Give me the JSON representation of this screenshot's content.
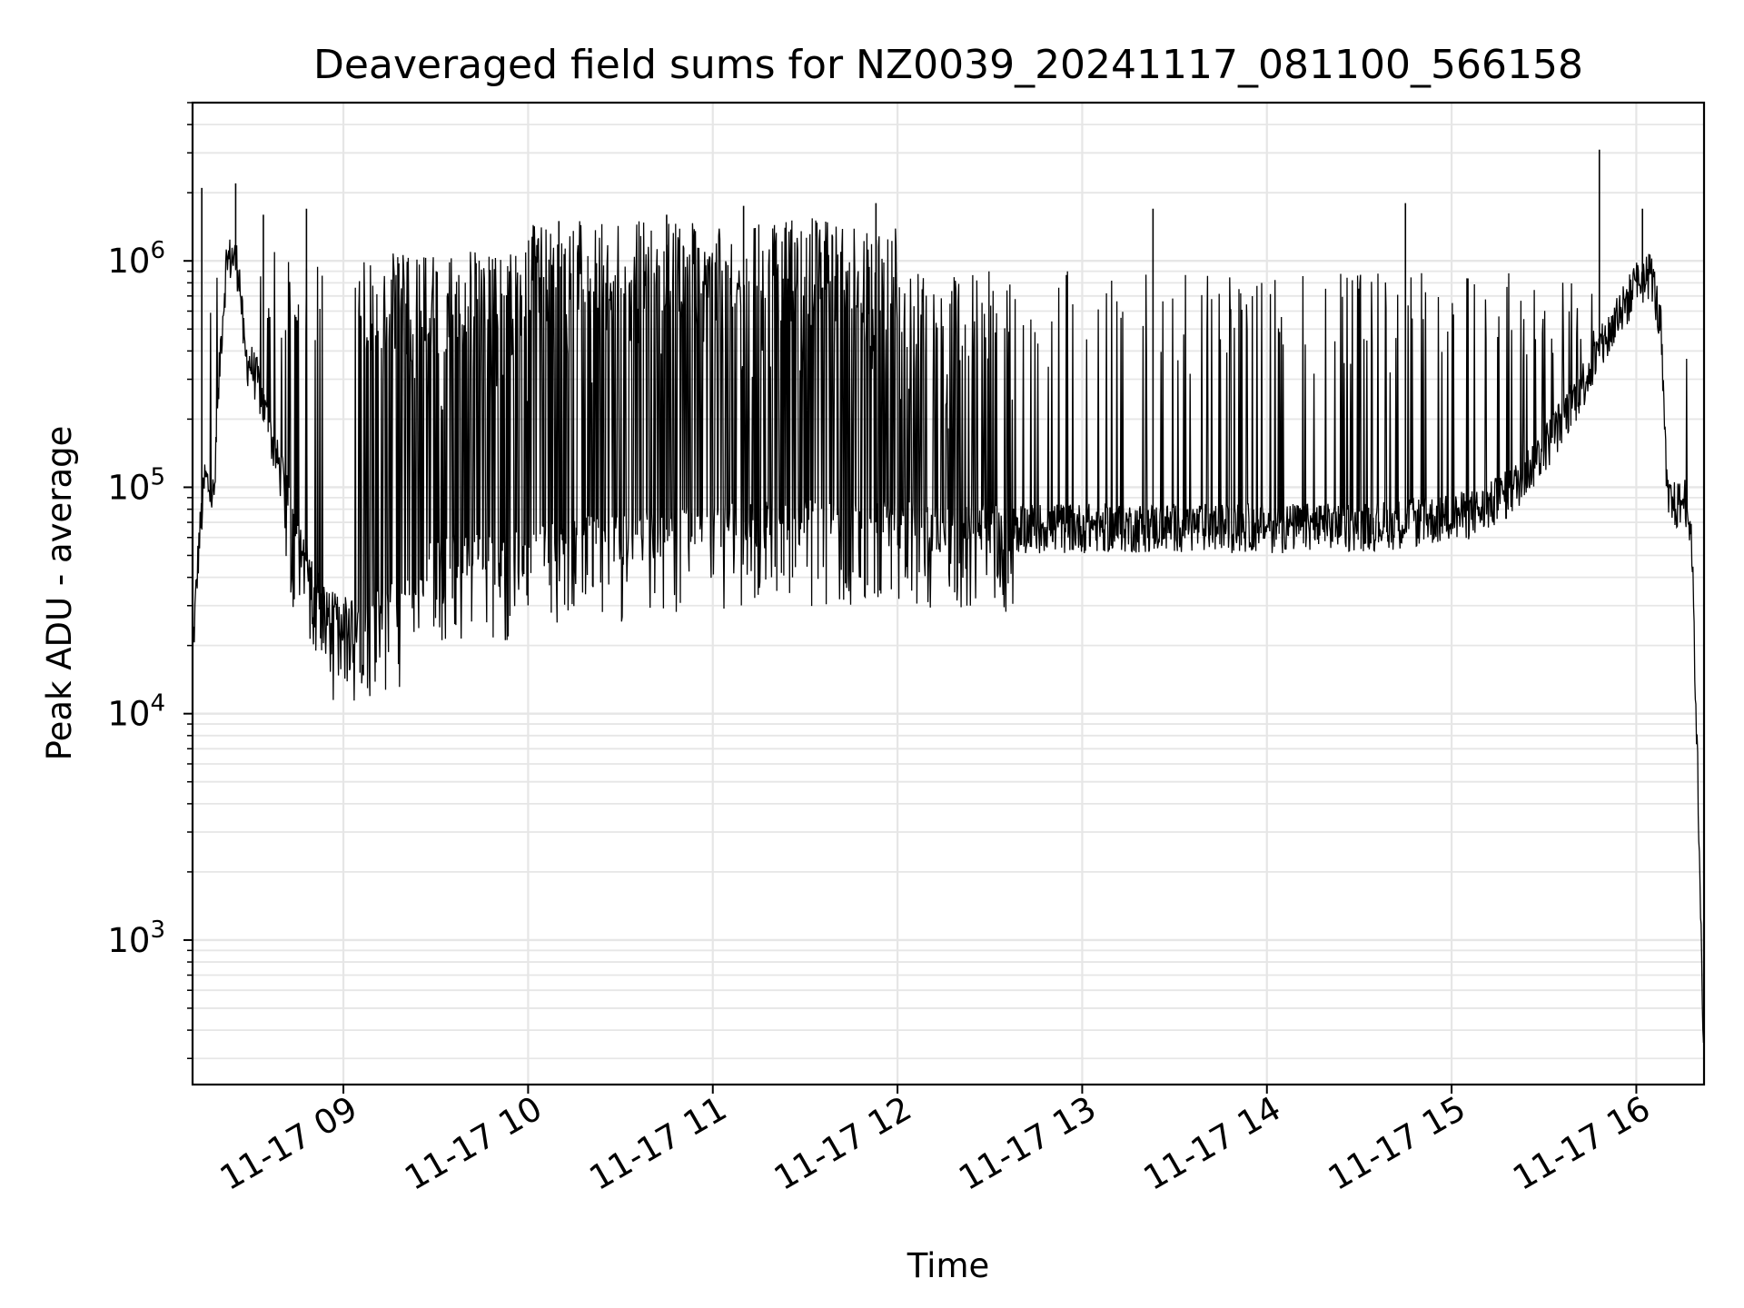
{
  "chart_data": {
    "type": "line",
    "title": "Deaveraged field sums for NZ0039_20241117_081100_566158",
    "xlabel": "Time",
    "ylabel": "Peak ADU - average",
    "yscale": "log",
    "ylim": [
      230,
      5000000
    ],
    "xlim": [
      "2024-11-17 08:11",
      "2024-11-17 16:22"
    ],
    "grid": true,
    "line_color": "#000000",
    "x_ticks": [
      "11-17 09",
      "11-17 10",
      "11-17 11",
      "11-17 12",
      "11-17 13",
      "11-17 14",
      "11-17 15",
      "11-17 16"
    ],
    "y_ticks": [
      {
        "base": "10",
        "exp": "3",
        "value": 1000
      },
      {
        "base": "10",
        "exp": "4",
        "value": 10000
      },
      {
        "base": "10",
        "exp": "5",
        "value": 100000
      },
      {
        "base": "10",
        "exp": "6",
        "value": 1000000
      }
    ],
    "series": [
      {
        "x": [
          "2024-11-17 08:11",
          "2024-11-17 08:13",
          "2024-11-17 08:15",
          "2024-11-17 08:18",
          "2024-11-17 08:20",
          "2024-11-17 08:22",
          "2024-11-17 08:24",
          "2024-11-17 08:26",
          "2024-11-17 08:28",
          "2024-11-17 08:30",
          "2024-11-17 08:32",
          "2024-11-17 08:34",
          "2024-11-17 08:36",
          "2024-11-17 08:38",
          "2024-11-17 08:41",
          "2024-11-17 08:45",
          "2024-11-17 08:50",
          "2024-11-17 08:55",
          "2024-11-17 09:00",
          "2024-11-17 09:05",
          "2024-11-17 09:10",
          "2024-11-17 09:20",
          "2024-11-17 09:30",
          "2024-11-17 09:40",
          "2024-11-17 09:50",
          "2024-11-17 09:55",
          "2024-11-17 10:00",
          "2024-11-17 10:15",
          "2024-11-17 10:30",
          "2024-11-17 10:45",
          "2024-11-17 11:00",
          "2024-11-17 11:15",
          "2024-11-17 11:30",
          "2024-11-17 11:45",
          "2024-11-17 12:00",
          "2024-11-17 12:20",
          "2024-11-17 12:40",
          "2024-11-17 13:00",
          "2024-11-17 13:20",
          "2024-11-17 13:40",
          "2024-11-17 14:00",
          "2024-11-17 14:20",
          "2024-11-17 14:40",
          "2024-11-17 15:00",
          "2024-11-17 15:10",
          "2024-11-17 15:20",
          "2024-11-17 15:30",
          "2024-11-17 15:40",
          "2024-11-17 15:50",
          "2024-11-17 16:00",
          "2024-11-17 16:05",
          "2024-11-17 16:08",
          "2024-11-17 16:10",
          "2024-11-17 16:12",
          "2024-11-17 16:14",
          "2024-11-17 16:16",
          "2024-11-17 16:18",
          "2024-11-17 16:20",
          "2024-11-17 16:22"
        ],
        "baseline": [
          18000,
          55000,
          110000,
          90000,
          400000,
          1000000,
          1050000,
          950000,
          380000,
          350000,
          300000,
          230000,
          180000,
          140000,
          100000,
          60000,
          40000,
          28000,
          27000,
          27000,
          28000,
          32000,
          50000,
          50000,
          48000,
          50000,
          55000,
          60000,
          60000,
          65000,
          70000,
          70000,
          70000,
          70000,
          70000,
          68000,
          68000,
          68000,
          68000,
          68000,
          68000,
          68000,
          70000,
          75000,
          80000,
          100000,
          150000,
          250000,
          450000,
          800000,
          900000,
          500000,
          90000,
          85000,
          85000,
          90000,
          60000,
          5000,
          300
        ]
      }
    ],
    "spikes": [
      {
        "x": "2024-11-17 08:14",
        "y": 2100000
      },
      {
        "x": "2024-11-17 08:25",
        "y": 2200000
      },
      {
        "x": "2024-11-17 08:34",
        "y": 1600000
      },
      {
        "x": "2024-11-17 08:48",
        "y": 1700000
      },
      {
        "x": "2024-11-17 10:10",
        "y": 1500000
      },
      {
        "x": "2024-11-17 10:45",
        "y": 1600000
      },
      {
        "x": "2024-11-17 11:10",
        "y": 1750000
      },
      {
        "x": "2024-11-17 11:53",
        "y": 1800000
      },
      {
        "x": "2024-11-17 13:23",
        "y": 1700000
      },
      {
        "x": "2024-11-17 14:45",
        "y": 1800000
      },
      {
        "x": "2024-11-17 15:48",
        "y": 3100000
      },
      {
        "x": "2024-11-17 16:02",
        "y": 1700000
      }
    ]
  }
}
